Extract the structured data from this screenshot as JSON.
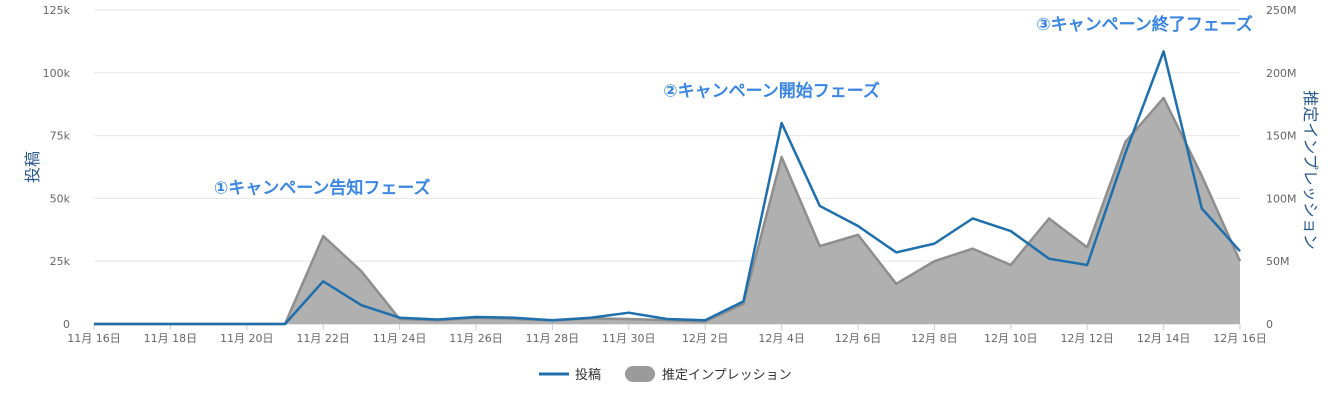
{
  "chart_data": {
    "type": "line+area",
    "x": [
      "11/16",
      "11/17",
      "11/18",
      "11/19",
      "11/20",
      "11/21",
      "11/22",
      "11/23",
      "11/24",
      "11/25",
      "11/26",
      "11/27",
      "11/28",
      "11/29",
      "11/30",
      "12/1",
      "12/2",
      "12/3",
      "12/4",
      "12/5",
      "12/6",
      "12/7",
      "12/8",
      "12/9",
      "12/10",
      "12/11",
      "12/12",
      "12/13",
      "12/14",
      "12/15",
      "12/16"
    ],
    "x_tick_labels": [
      "11月 16日",
      "11月 18日",
      "11月 20日",
      "11月 22日",
      "11月 24日",
      "11月 26日",
      "11月 28日",
      "11月 30日",
      "12月 2日",
      "12月 4日",
      "12月 6日",
      "12月 8日",
      "12月 10日",
      "12月 12日",
      "12月 14日",
      "12月 16日"
    ],
    "series": [
      {
        "name": "投稿",
        "kind": "line",
        "axis": "left",
        "color": "#1f6fad",
        "values": [
          0,
          0,
          0,
          0,
          0,
          0,
          17000,
          7500,
          2500,
          1800,
          2800,
          2500,
          1500,
          2500,
          4500,
          2000,
          1500,
          9000,
          80000,
          47000,
          39000,
          28500,
          32000,
          42000,
          37000,
          26000,
          23500,
          68000,
          108500,
          46000,
          29000
        ]
      },
      {
        "name": "推定インプレッション",
        "kind": "area",
        "axis": "right",
        "color": "#9e9e9e",
        "values": [
          0,
          0,
          0,
          0,
          0,
          0,
          70000000,
          42000000,
          4000000,
          3000000,
          5000000,
          4000000,
          3000000,
          4500000,
          4000000,
          3000000,
          2000000,
          16000000,
          133000000,
          62000000,
          71000000,
          32000000,
          50000000,
          60000000,
          47000000,
          84000000,
          61000000,
          145000000,
          180000000,
          118000000,
          50000000
        ]
      }
    ],
    "y_left": {
      "label": "投稿",
      "min": 0,
      "max": 125000,
      "ticks": [
        0,
        25000,
        50000,
        75000,
        100000,
        125000
      ],
      "tick_labels": [
        "0",
        "25k",
        "50k",
        "75k",
        "100k",
        "125k"
      ]
    },
    "y_right": {
      "label": "推定インプレッション",
      "min": 0,
      "max": 250000000,
      "ticks": [
        0,
        50000000,
        100000000,
        150000000,
        200000000,
        250000000
      ],
      "tick_labels": [
        "0",
        "50M",
        "100M",
        "150M",
        "200M",
        "250M"
      ]
    },
    "annotations": [
      {
        "text": "①キャンペーン告知フェーズ",
        "x": "11/22",
        "y_left": 52000
      },
      {
        "text": "②キャンペーン開始フェーズ",
        "x": "12/4",
        "y_left": 90500
      },
      {
        "text": "③キャンペーン終了フェーズ",
        "x": "12/14",
        "y_left": 117000
      }
    ],
    "grid": true,
    "legend_position": "bottom-center"
  }
}
